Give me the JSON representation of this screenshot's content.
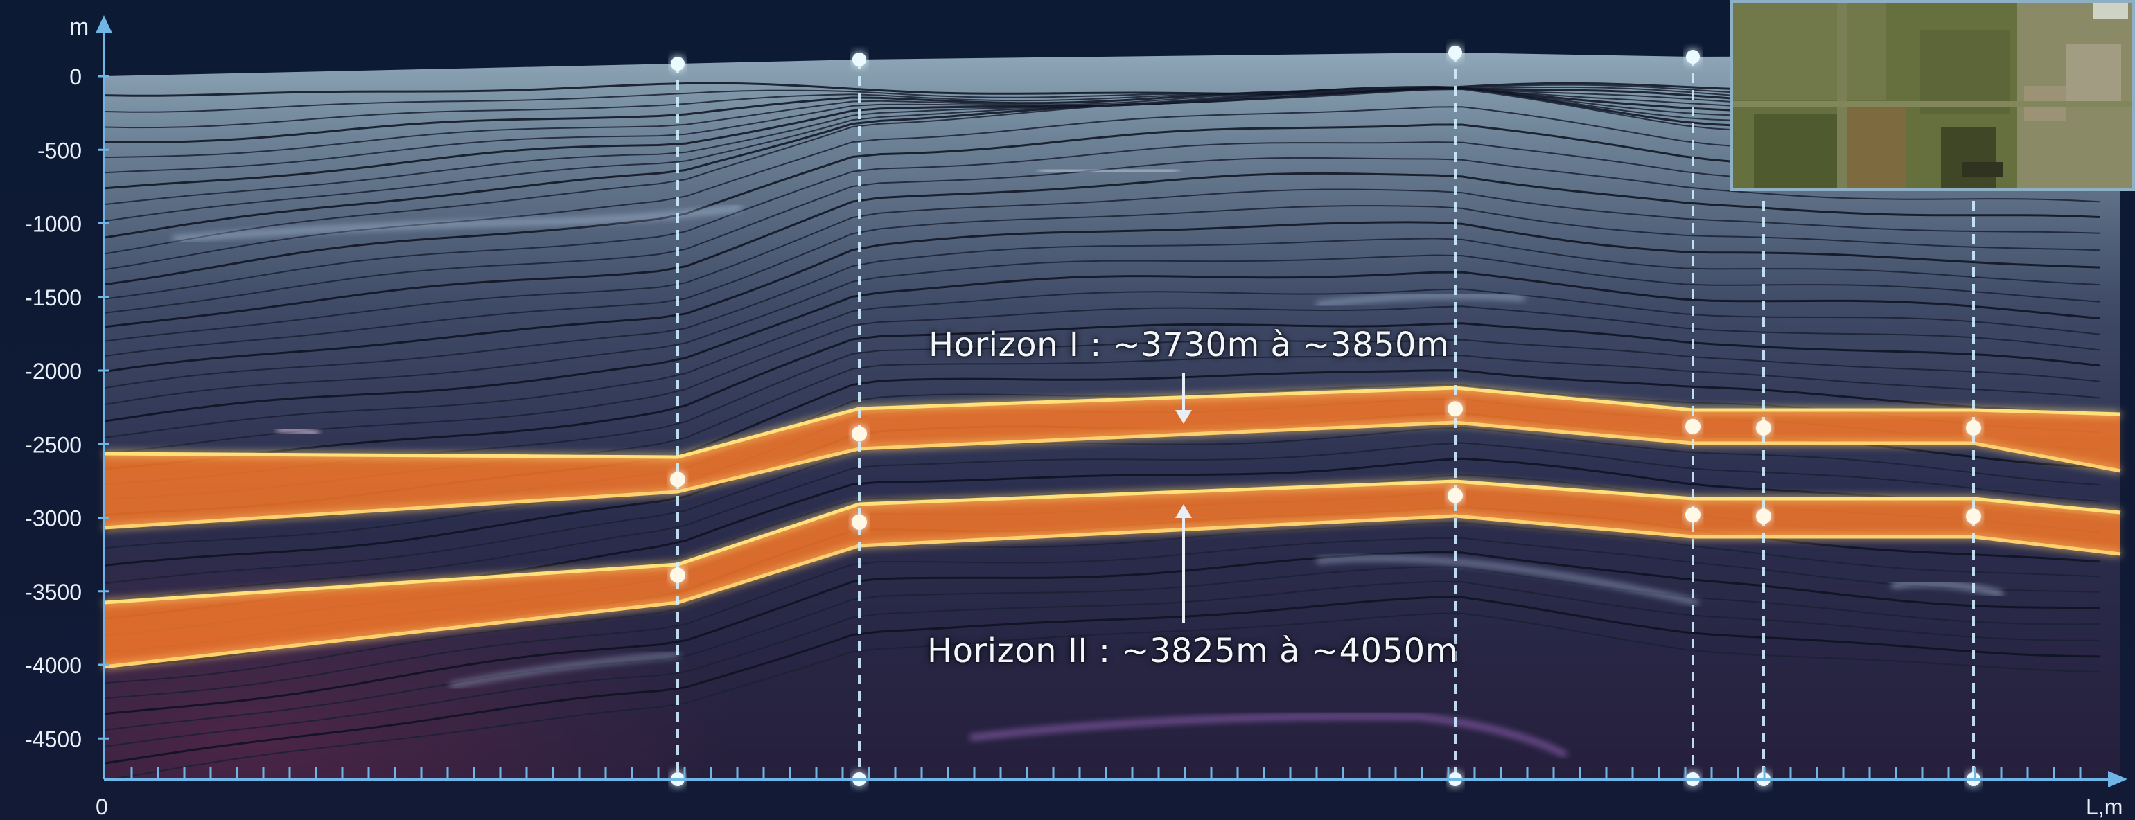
{
  "axes": {
    "y_unit": "m",
    "x_unit": "L,m",
    "x_origin_label": "0",
    "y_ticks": [
      0,
      -500,
      -1000,
      -1500,
      -2000,
      -2500,
      -3000,
      -3500,
      -4000,
      -4500
    ]
  },
  "annotations": {
    "horizon1": "Horizon I : ~3730m à ~3850m",
    "horizon2": "Horizon II : ~3825m à ~4050m"
  },
  "colors": {
    "background": "#141c34",
    "horizon_core": "#ff6a1e",
    "horizon_edge": "#ffe07a",
    "well_line": "#cfefff",
    "axis": "#6fb6e6"
  },
  "wells": [
    {
      "id": "w1",
      "markers": [
        -2740,
        -3390
      ]
    },
    {
      "id": "w2",
      "markers": [
        -2430,
        -3030
      ]
    },
    {
      "id": "w3",
      "markers": [
        -2260,
        -2850
      ]
    },
    {
      "id": "w4",
      "markers": [
        -2380,
        -2980
      ]
    },
    {
      "id": "w5",
      "markers": [
        -2390,
        -2990
      ]
    },
    {
      "id": "w6",
      "markers": [
        -2390,
        -2990
      ]
    }
  ],
  "map_inset": {
    "type": "satellite map",
    "visible": true
  }
}
